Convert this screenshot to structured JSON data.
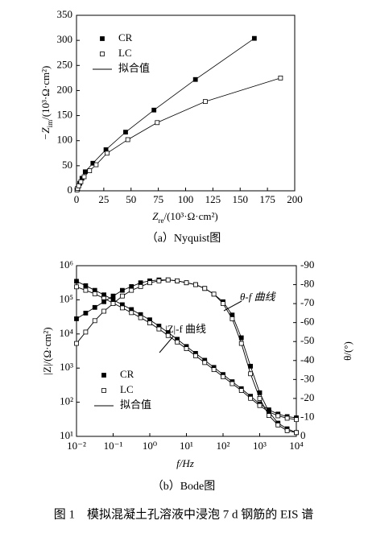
{
  "chart_data": [
    {
      "type": "scatter",
      "color": "#000000",
      "xlabel": {
        "text": "Z",
        "sub": "re",
        "rest": "/(10³·Ω·cm²)"
      },
      "ylabel": {
        "text": "−Z",
        "sub": "im",
        "rest": "/(10³·Ω·cm²)"
      },
      "xlim": [
        0,
        200
      ],
      "xticks": [
        0,
        25,
        50,
        75,
        100,
        125,
        150,
        175,
        200
      ],
      "ylim": [
        0,
        350
      ],
      "yticks": [
        0,
        50,
        100,
        150,
        200,
        250,
        300,
        350
      ],
      "fit_label": "拟合值",
      "caption": "（a）Nyquist图",
      "series": [
        {
          "name": "CR",
          "marker": "filled",
          "x": [
            0.5,
            1,
            2,
            3,
            5,
            8,
            15,
            27,
            45,
            71,
            109,
            163
          ],
          "values": [
            2,
            5,
            10,
            15,
            25,
            38,
            55,
            82,
            117,
            161,
            222,
            304
          ]
        },
        {
          "name": "LC",
          "marker": "open",
          "x": [
            0.5,
            1,
            2,
            4,
            7,
            12,
            18,
            28,
            47,
            74,
            118,
            187
          ],
          "values": [
            2,
            5,
            10,
            18,
            28,
            40,
            52,
            75,
            102,
            136,
            178,
            225
          ]
        }
      ]
    },
    {
      "type": "bode",
      "color": "#000000",
      "log_x": true,
      "log_y": true,
      "xlabel": "f/Hz",
      "ylabel": "|Z|/(Ω·cm²)",
      "y2label": "θ/(°)",
      "xlim": [
        0.01,
        10000
      ],
      "xticks": [
        {
          "value": 0.01,
          "label": "10⁻²"
        },
        {
          "value": 0.1,
          "label": "10⁻¹"
        },
        {
          "value": 1,
          "label": "10⁰"
        },
        {
          "value": 10,
          "label": "10¹"
        },
        {
          "value": 100,
          "label": "10²"
        },
        {
          "value": 1000,
          "label": "10³"
        },
        {
          "value": 10000,
          "label": "10⁴"
        }
      ],
      "ylim": [
        10,
        1000000
      ],
      "yticks": [
        {
          "value": 10,
          "label": "10¹"
        },
        {
          "value": 100,
          "label": "10²"
        },
        {
          "value": 1000,
          "label": "10³"
        },
        {
          "value": 10000,
          "label": "10⁴"
        },
        {
          "value": 100000,
          "label": "10⁵"
        },
        {
          "value": 1000000,
          "label": "10⁶"
        }
      ],
      "y2lim": [
        0,
        -90
      ],
      "y2ticks": [
        0,
        -10,
        -20,
        -30,
        -40,
        -50,
        -60,
        -70,
        -80,
        -90
      ],
      "fit_label": "拟合值",
      "caption": "（b）Bode图",
      "annotations": [
        "θ-f 曲线",
        "|Z|-f 曲线"
      ],
      "x": [
        0.01,
        0.0178,
        0.0316,
        0.0562,
        0.1,
        0.178,
        0.316,
        0.562,
        1,
        1.78,
        3.16,
        5.62,
        10,
        17.8,
        31.6,
        56.2,
        100,
        178,
        316,
        562,
        1000,
        1780,
        3160,
        5620,
        10000
      ],
      "series": [
        {
          "name": "CR",
          "marker": "filled",
          "values": [
            350000,
            260000,
            190000,
            140000,
            100000,
            72000,
            52000,
            37000,
            26000,
            17000,
            11000,
            7000,
            4300,
            2700,
            1700,
            1050,
            650,
            400,
            250,
            150,
            90,
            60,
            45,
            38,
            35
          ]
        },
        {
          "name": "LC",
          "marker": "open",
          "values": [
            240000,
            190000,
            150000,
            110000,
            80000,
            58000,
            42000,
            30000,
            21000,
            14000,
            9000,
            5800,
            3700,
            2300,
            1450,
            900,
            560,
            350,
            220,
            130,
            80,
            52,
            40,
            34,
            31
          ]
        },
        {
          "marker": "filled",
          "axis": "y2",
          "values": [
            -62,
            -65,
            -68,
            -71,
            -74,
            -77,
            -79,
            -81,
            -82,
            -82.5,
            -82.5,
            -82,
            -81,
            -80,
            -78,
            -75,
            -71,
            -64,
            -52,
            -37,
            -23,
            -13,
            -7,
            -4,
            -2
          ]
        },
        {
          "marker": "open",
          "axis": "y2",
          "values": [
            -49,
            -55,
            -61,
            -66,
            -70,
            -74,
            -77,
            -79,
            -81,
            -82,
            -82.5,
            -82,
            -81,
            -80,
            -78,
            -75,
            -70,
            -62,
            -49,
            -33,
            -20,
            -11,
            -6,
            -3,
            -2
          ]
        }
      ]
    }
  ],
  "figure_caption": "图 1　模拟混凝土孔溶液中浸泡 7 d 钢筋的 EIS 谱"
}
